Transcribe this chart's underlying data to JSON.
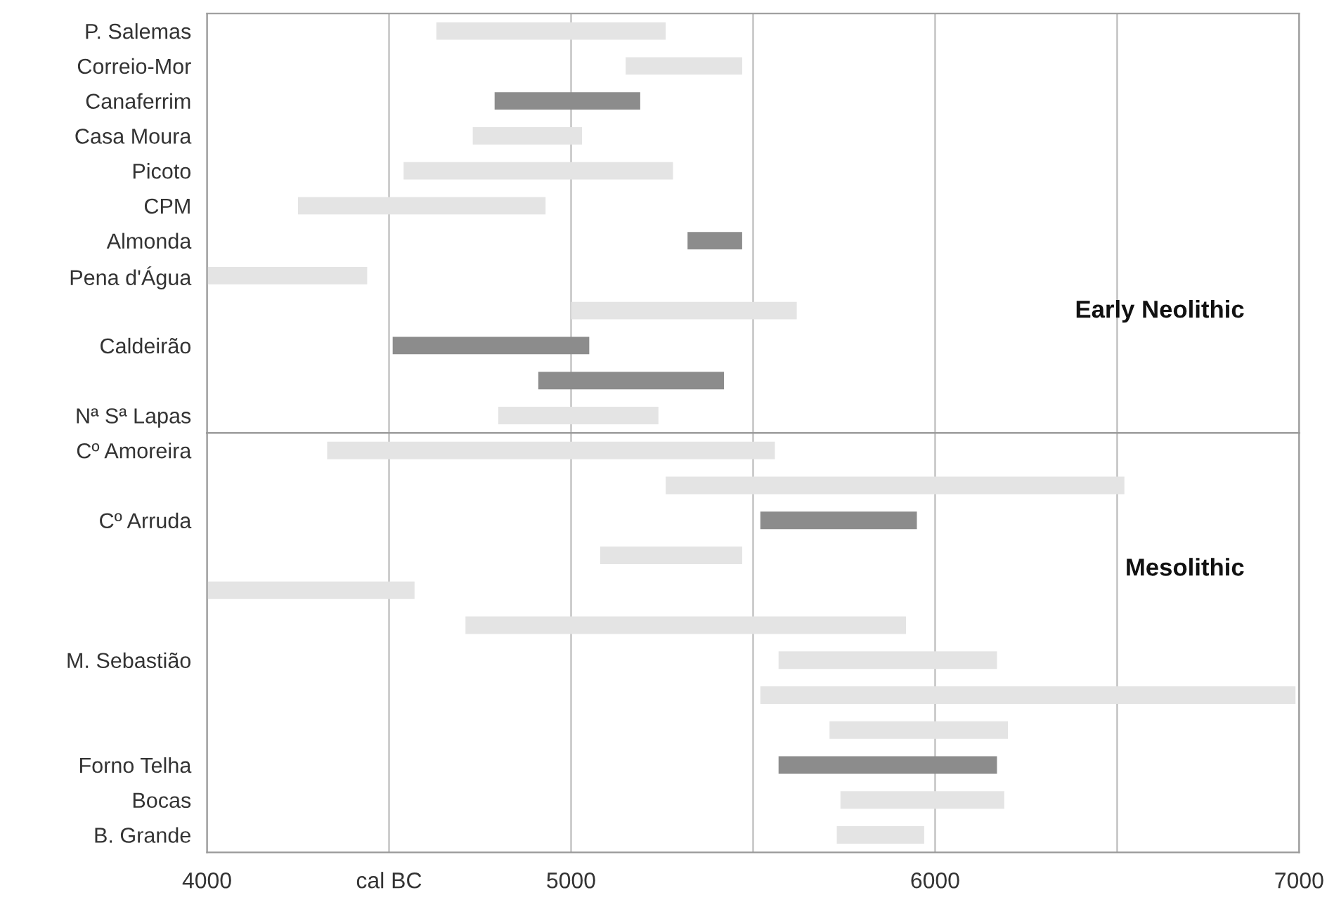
{
  "chart_data": [
    {
      "type": "bar",
      "orientation": "horizontal",
      "categories": [
        "P. Salemas",
        "Correio-Mor",
        "Canaferrim",
        "Casa Moura",
        "Picoto",
        "CPM",
        "Almonda",
        "Pena d'Água",
        null,
        "Caldeirão",
        null,
        "Nª Sª Lapas"
      ],
      "base": [
        4630,
        5150,
        4790,
        4730,
        4540,
        4250,
        5320,
        4000,
        5000,
        4510,
        4910,
        4800
      ],
      "values": [
        630,
        320,
        400,
        300,
        740,
        680,
        150,
        440,
        620,
        540,
        510,
        440
      ],
      "colors": [
        "#e4e4e4",
        "#e4e4e4",
        "#8c8c8c",
        "#e4e4e4",
        "#e4e4e4",
        "#e4e4e4",
        "#8c8c8c",
        "#e4e4e4",
        "#e4e4e4",
        "#8c8c8c",
        "#8c8c8c",
        "#e4e4e4"
      ],
      "xlim": [
        4000,
        7000
      ],
      "xticks": [
        {
          "value": 4000,
          "label": null
        },
        {
          "value": 4500,
          "label": null
        },
        {
          "value": 5000,
          "label": null
        },
        {
          "value": 5500,
          "label": null
        },
        {
          "value": 6000,
          "label": null
        },
        {
          "value": 6500,
          "label": null
        },
        {
          "value": 7000,
          "label": null
        }
      ],
      "tick_labels": "y",
      "grid": "x",
      "annotations": [
        "Early Neolithic"
      ]
    },
    {
      "type": "bar",
      "orientation": "horizontal",
      "categories": [
        "Cº Amoreira",
        null,
        "Cº Arruda",
        null,
        null,
        null,
        "M. Sebastião",
        null,
        null,
        "Forno Telha",
        "Bocas",
        "B. Grande"
      ],
      "base": [
        4330,
        5260,
        5520,
        5080,
        4000,
        4710,
        5570,
        5520,
        5710,
        5570,
        5740,
        5730
      ],
      "values": [
        1230,
        1260,
        430,
        390,
        570,
        1210,
        600,
        1470,
        490,
        600,
        450,
        240
      ],
      "colors": [
        "#e4e4e4",
        "#e4e4e4",
        "#8c8c8c",
        "#e4e4e4",
        "#e4e4e4",
        "#e4e4e4",
        "#e4e4e4",
        "#e4e4e4",
        "#e4e4e4",
        "#8c8c8c",
        "#e4e4e4",
        "#e4e4e4"
      ],
      "xlim": [
        4000,
        7000
      ],
      "xticks": [
        4000,
        {
          "value": 4500,
          "label": "cal BC"
        },
        5000,
        {
          "value": 5500,
          "label": null
        },
        6000,
        {
          "value": 6500,
          "label": null
        },
        7000
      ],
      "grid": "x",
      "annotations": [
        "Mesolithic"
      ]
    }
  ]
}
